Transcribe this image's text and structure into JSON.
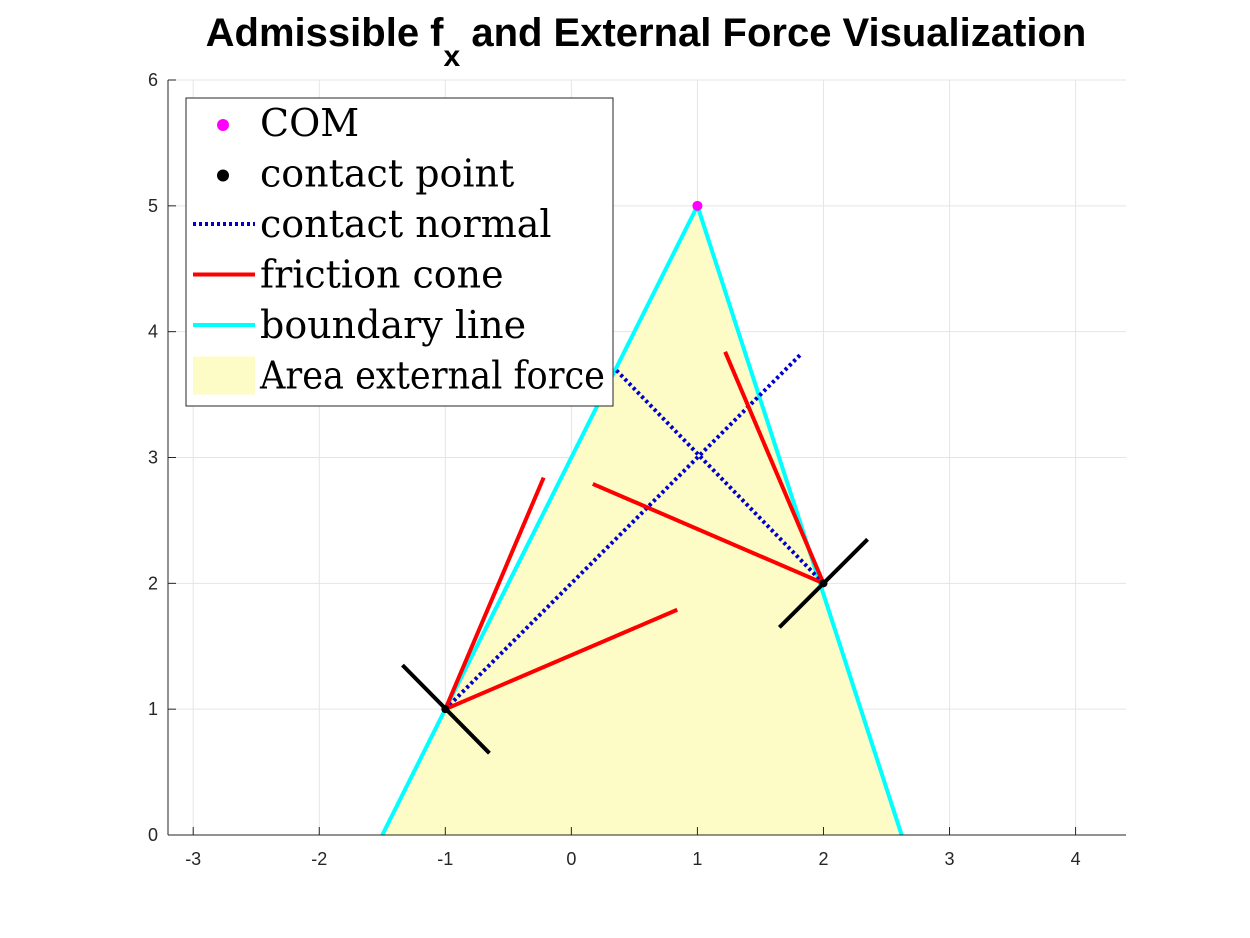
{
  "chart_data": {
    "type": "line",
    "title": {
      "prefix": "Admissible f",
      "subscript": "x",
      "suffix": " and External Force Visualization"
    },
    "xlabel": "",
    "ylabel": "",
    "xlim": [
      -3.2,
      4.4
    ],
    "ylim": [
      0,
      6
    ],
    "xticks": [
      -3,
      -2,
      -1,
      0,
      1,
      2,
      3,
      4
    ],
    "yticks": [
      0,
      1,
      2,
      3,
      4,
      5,
      6
    ],
    "xtick_labels": [
      "-3",
      "-2",
      "-1",
      "0",
      "1",
      "2",
      "3",
      "4"
    ],
    "ytick_labels": [
      "0",
      "1",
      "2",
      "3",
      "4",
      "5",
      "6"
    ],
    "grid": true,
    "legend_placement": "top-left",
    "colors": {
      "com": "#ff00ff",
      "contact_point": "#000000",
      "contact_normal": "#0000cc",
      "friction_cone": "#ff0000",
      "boundary_line": "#00ffff",
      "area": "#fdfbc6",
      "tangent": "#000000"
    },
    "legend": [
      {
        "label": "COM",
        "kind": "dot",
        "color": "#ff00ff"
      },
      {
        "label": "contact point",
        "kind": "dot",
        "color": "#000000"
      },
      {
        "label": "contact normal",
        "kind": "dotted",
        "color": "#0000cc"
      },
      {
        "label": "friction cone",
        "kind": "line",
        "color": "#ff0000"
      },
      {
        "label": "boundary line",
        "kind": "line",
        "color": "#00ffff"
      },
      {
        "label": "Area external force",
        "kind": "patch",
        "color": "#fdfbc6"
      }
    ],
    "area_external_force": {
      "x": [
        -1.5,
        1,
        2.62
      ],
      "y": [
        0,
        5,
        0
      ]
    },
    "boundary_lines": [
      {
        "x": [
          -1.5,
          1
        ],
        "y": [
          0,
          5
        ]
      },
      {
        "x": [
          1,
          2.62
        ],
        "y": [
          5,
          0
        ]
      }
    ],
    "com": {
      "x": 1,
      "y": 5
    },
    "contact_points": [
      {
        "x": -1,
        "y": 1
      },
      {
        "x": 2,
        "y": 2
      }
    ],
    "contact_normals": [
      {
        "x": [
          -1,
          1.82
        ],
        "y": [
          1,
          3.82
        ]
      },
      {
        "x": [
          2,
          0.35
        ],
        "y": [
          2,
          3.7
        ]
      }
    ],
    "friction_cones": [
      {
        "x": [
          -1,
          -0.22
        ],
        "y": [
          1,
          2.84
        ]
      },
      {
        "x": [
          -1,
          0.84
        ],
        "y": [
          1,
          1.79
        ]
      },
      {
        "x": [
          2,
          1.22
        ],
        "y": [
          2,
          3.84
        ]
      },
      {
        "x": [
          2,
          0.17
        ],
        "y": [
          2,
          2.79
        ]
      }
    ],
    "tangent_lines": [
      {
        "x": [
          -1.34,
          -0.65
        ],
        "y": [
          1.35,
          0.65
        ]
      },
      {
        "x": [
          1.65,
          2.35
        ],
        "y": [
          1.65,
          2.35
        ]
      }
    ]
  }
}
